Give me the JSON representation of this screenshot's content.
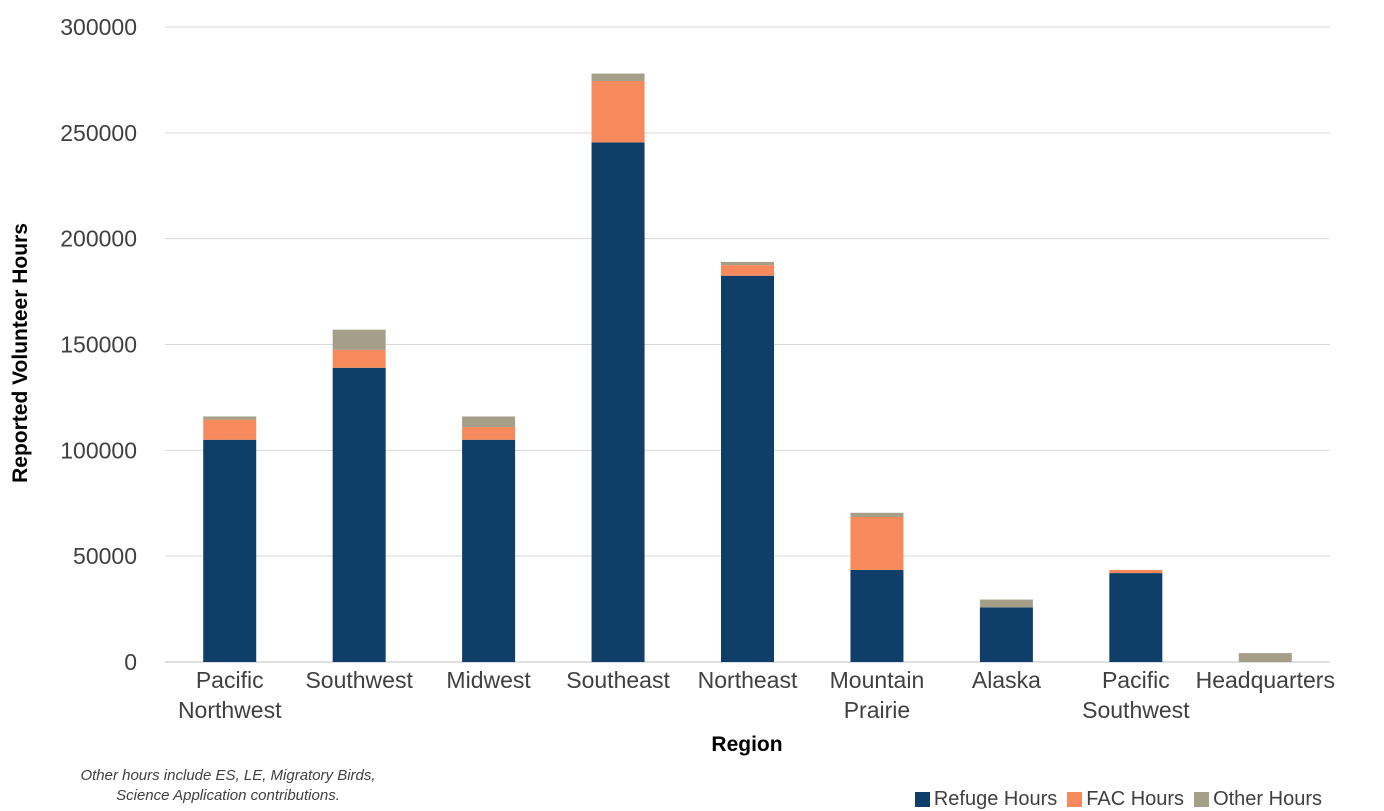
{
  "chart_data": {
    "type": "bar",
    "stacked": true,
    "title": "",
    "xlabel": "Region",
    "ylabel": "Reported Volunteer Hours",
    "ylim": [
      0,
      300000
    ],
    "yticks": [
      0,
      50000,
      100000,
      150000,
      200000,
      250000,
      300000
    ],
    "grid": true,
    "legend_position": "bottom-right",
    "categories": [
      [
        "Pacific",
        "Northwest"
      ],
      [
        "Southwest"
      ],
      [
        "Midwest"
      ],
      [
        "Southeast"
      ],
      [
        "Northeast"
      ],
      [
        "Mountain",
        "Prairie"
      ],
      [
        "Alaska"
      ],
      [
        "Pacific",
        "Southwest"
      ],
      [
        "Headquarters"
      ]
    ],
    "series": [
      {
        "name": "Refuge Hours",
        "color": "#0f3f69",
        "values": [
          105000,
          139000,
          105000,
          245500,
          182500,
          43500,
          25800,
          42000,
          0
        ]
      },
      {
        "name": "FAC Hours",
        "color": "#f68a5d",
        "values": [
          9500,
          8500,
          6000,
          29000,
          5000,
          25000,
          0,
          1500,
          0
        ]
      },
      {
        "name": "Other Hours",
        "color": "#a59e89",
        "values": [
          1500,
          9500,
          5000,
          3500,
          1500,
          2000,
          3700,
          0,
          4200
        ]
      }
    ]
  },
  "footnote": [
    "Other hours include ES, LE, Migratory Birds,",
    "Science Application contributions."
  ]
}
